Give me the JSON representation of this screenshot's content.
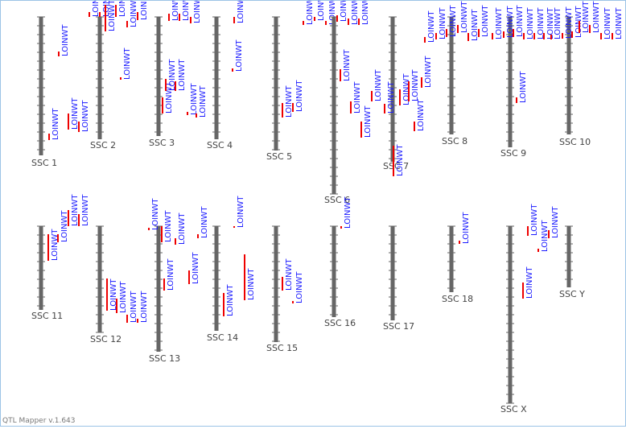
{
  "chromosomes": [
    {
      "name": "SSC 1",
      "qtls": [
        "LOINWT",
        "LOINWT",
        "LOINWT",
        "LOINWT"
      ]
    },
    {
      "name": "SSC 2",
      "qtls": [
        "LOINWT",
        "LOINWT",
        "LOINWT",
        "LOINWT",
        "LOINWT",
        "LOINWT",
        "LOINWT"
      ]
    },
    {
      "name": "SSC 3",
      "qtls": [
        "LOINWT",
        "LOINWT",
        "LOINWT",
        "LOINWT",
        "LOINWT",
        "LOINWT",
        "LOINWT",
        "LOINWT"
      ]
    },
    {
      "name": "SSC 4",
      "qtls": [
        "LOINWT",
        "LOINWT"
      ]
    },
    {
      "name": "SSC 5",
      "qtls": [
        "LOINWT",
        "LOINWT",
        "LOINWT",
        "LOINWT",
        "LOINWT"
      ]
    },
    {
      "name": "SSC 6",
      "qtls": [
        "LOINWT",
        "LOINWT",
        "LOINWT",
        "LOINWT",
        "LOINWT",
        "LOINWT",
        "LOINWT"
      ]
    },
    {
      "name": "SSC 7",
      "qtls": [
        "LOINWT",
        "LOINWT",
        "LOINWT",
        "LOINWT",
        "LOINWT",
        "LOINWT"
      ]
    },
    {
      "name": "SSC 8",
      "qtls": [
        "LOINWT",
        "LOINWT",
        "LOINWT",
        "LOINWT",
        "LOINWT",
        "LOINWT"
      ]
    },
    {
      "name": "SSC 9",
      "qtls": [
        "LOINWT",
        "LOINWT",
        "LOINWT",
        "LOINWT",
        "LOINWT",
        "LOINWT",
        "LOINWT"
      ]
    },
    {
      "name": "SSC 10",
      "qtls": [
        "LOINWT",
        "LOINWT",
        "LOINWT",
        "LOINWT",
        "LOINWT",
        "LOINWT",
        "LOINWT"
      ]
    },
    {
      "name": "SSC 11",
      "qtls": [
        "LOINWT",
        "LOINWT",
        "LOINWT",
        "LOINWT"
      ]
    },
    {
      "name": "SSC 12",
      "qtls": [
        "LOINWT",
        "LOINWT",
        "LOINWT",
        "LOINWT"
      ]
    },
    {
      "name": "SSC 13",
      "qtls": [
        "LOINWT",
        "LOINWT",
        "LOINWT",
        "LOINWT",
        "LOINWT",
        "LOINWT"
      ]
    },
    {
      "name": "SSC 14",
      "qtls": [
        "LOINWT",
        "LOINWT",
        "LOINWT"
      ]
    },
    {
      "name": "SSC 15",
      "qtls": [
        "LOINWT",
        "LOINWT"
      ]
    },
    {
      "name": "SSC 16",
      "qtls": [
        "LOINWT"
      ]
    },
    {
      "name": "SSC 17",
      "qtls": []
    },
    {
      "name": "SSC 18",
      "qtls": [
        "LOINWT"
      ]
    },
    {
      "name": "SSC X",
      "qtls": [
        "LOINWT",
        "LOINWT",
        "LOINWT",
        "LOINWT"
      ]
    },
    {
      "name": "SSC Y",
      "qtls": []
    }
  ],
  "footer": "QTL Mapper v.1.643"
}
